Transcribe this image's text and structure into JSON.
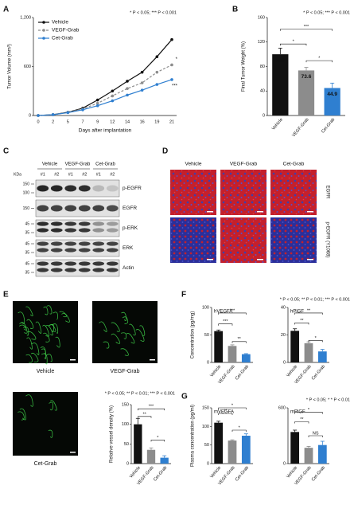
{
  "panels": [
    "A",
    "B",
    "C",
    "D",
    "E",
    "F",
    "G"
  ],
  "chart_data": [
    {
      "type": "line",
      "ylabel": "Tumor Volume (mm³)",
      "xlabel": "Days after implantation",
      "note": "* P < 0.05;  *** P < 0.001",
      "categories": [
        "0",
        "2",
        "5",
        "7",
        "9",
        "12",
        "14",
        "16",
        "19",
        "21"
      ],
      "series": [
        {
          "name": "Vehicle",
          "color": "#111111",
          "values": [
            0,
            10,
            40,
            90,
            190,
            300,
            420,
            530,
            720,
            930
          ]
        },
        {
          "name": "VEGF-Grab",
          "color": "#8c8c8c",
          "dashed": true,
          "values": [
            0,
            10,
            40,
            80,
            150,
            240,
            330,
            400,
            530,
            620
          ]
        },
        {
          "name": "Cet-Grab",
          "color": "#2f7fd0",
          "values": [
            0,
            10,
            35,
            70,
            120,
            180,
            250,
            310,
            380,
            440
          ]
        }
      ],
      "ylim": [
        0,
        1200
      ],
      "yticks": [
        0,
        600,
        {
          "value": 1200,
          "label": "1,200"
        }
      ],
      "annotations": [
        "*",
        "***"
      ]
    },
    {
      "type": "bar",
      "ylabel": "Final Tumor Weight (%)",
      "note": "* P < 0.05;  *** P < 0.001",
      "categories": [
        "Vehicle",
        "VEGF-Grab",
        "Cet-Grab"
      ],
      "values": [
        100,
        73.6,
        44.9
      ],
      "value_labels": [
        "100",
        "73.6",
        "44.9"
      ],
      "errors": [
        10,
        5,
        8
      ],
      "colors": [
        "#111111",
        "#8c8c8c",
        "#2f7fd0"
      ],
      "ylim": [
        0,
        160
      ],
      "yticks": [
        0,
        40,
        80,
        120,
        160
      ],
      "annotations": [
        "*",
        "***",
        "*"
      ]
    },
    {
      "type": "bar",
      "ylabel": "Relative vessel density (%)",
      "note": "* P < 0.05; ** P < 0.01; *** P < 0.001",
      "categories": [
        "Vehicle",
        "VEGF-Grab",
        "Cet-Grab"
      ],
      "values": [
        100,
        35,
        15
      ],
      "errors": [
        15,
        5,
        5
      ],
      "colors": [
        "#111111",
        "#8c8c8c",
        "#2f7fd0"
      ],
      "ylim": [
        0,
        150
      ],
      "yticks": [
        0,
        50,
        100,
        150
      ],
      "annotations": [
        "**",
        "***",
        "*"
      ]
    },
    {
      "type": "bar",
      "title": "hVEGFA",
      "ylabel": "Concentration (pg/mg)",
      "note": "* P < 0.05;  ** P < 0.01;  *** P < 0.001",
      "categories": [
        "Vehicle",
        "VEGF-Grab",
        "Cet-Grab"
      ],
      "values": [
        57,
        30,
        15
      ],
      "errors": [
        2,
        2,
        1
      ],
      "colors": [
        "#111111",
        "#8c8c8c",
        "#2f7fd0"
      ],
      "ylim": [
        0,
        100
      ],
      "yticks": [
        0,
        50,
        100
      ],
      "annotations": [
        "***",
        "***",
        "**"
      ]
    },
    {
      "type": "bar",
      "title": "hPlGF",
      "categories": [
        "Vehicle",
        "VEGF-Grab",
        "Cet-Grab"
      ],
      "values": [
        23,
        14,
        8
      ],
      "errors": [
        1.5,
        1,
        1.5
      ],
      "colors": [
        "#111111",
        "#8c8c8c",
        "#2f7fd0"
      ],
      "ylim": [
        0,
        40
      ],
      "yticks": [
        0,
        20,
        40
      ],
      "annotations": [
        "**",
        "**",
        "*"
      ]
    },
    {
      "type": "bar",
      "title": "mVEGFA",
      "ylabel": "Plasma concentration (pg/ml)",
      "note": "* P < 0.05;  * * P < 0.01",
      "categories": [
        "Vehicle",
        "VEGF-Grab",
        "Cet-Grab"
      ],
      "values": [
        110,
        62,
        75
      ],
      "errors": [
        4,
        2,
        5
      ],
      "colors": [
        "#111111",
        "#8c8c8c",
        "#2f7fd0"
      ],
      "ylim": [
        0,
        150
      ],
      "yticks": [
        0,
        50,
        100,
        150
      ],
      "annotations": [
        "**",
        "*",
        "*"
      ]
    },
    {
      "type": "bar",
      "title": "mPlGF",
      "categories": [
        "Vehicle",
        "VEGF-Grab",
        "Cet-Grab"
      ],
      "values": [
        340,
        170,
        200
      ],
      "errors": [
        20,
        15,
        40
      ],
      "colors": [
        "#111111",
        "#8c8c8c",
        "#2f7fd0"
      ],
      "ylim": [
        0,
        600
      ],
      "yticks": [
        0,
        600
      ],
      "annotations": [
        "**",
        "*",
        "NS"
      ]
    }
  ],
  "blot": {
    "groups": [
      "Vehicle",
      "VEGF-Grab",
      "Cet-Grab"
    ],
    "lanes": [
      "#1",
      "#2",
      "#1",
      "#2",
      "#1",
      "#2"
    ],
    "unit": "KDa",
    "rows": [
      {
        "label": "p-EGFR",
        "markers": [
          150,
          100
        ]
      },
      {
        "label": "EGFR",
        "markers": [
          150
        ]
      },
      {
        "label": "p-ERK",
        "markers": [
          45,
          35
        ]
      },
      {
        "label": "ERK",
        "markers": [
          45,
          35
        ]
      },
      {
        "label": "Actin",
        "markers": [
          45,
          35
        ]
      }
    ]
  },
  "staining": {
    "columns": [
      "Vehicle",
      "VEGF-Grab",
      "Cet-Grab"
    ],
    "rows": [
      "EGFR",
      "p-EGFR (Y1068)"
    ]
  },
  "vessel_images": [
    "Vehicle",
    "VEGF-Grab",
    "Cet-Grab"
  ]
}
